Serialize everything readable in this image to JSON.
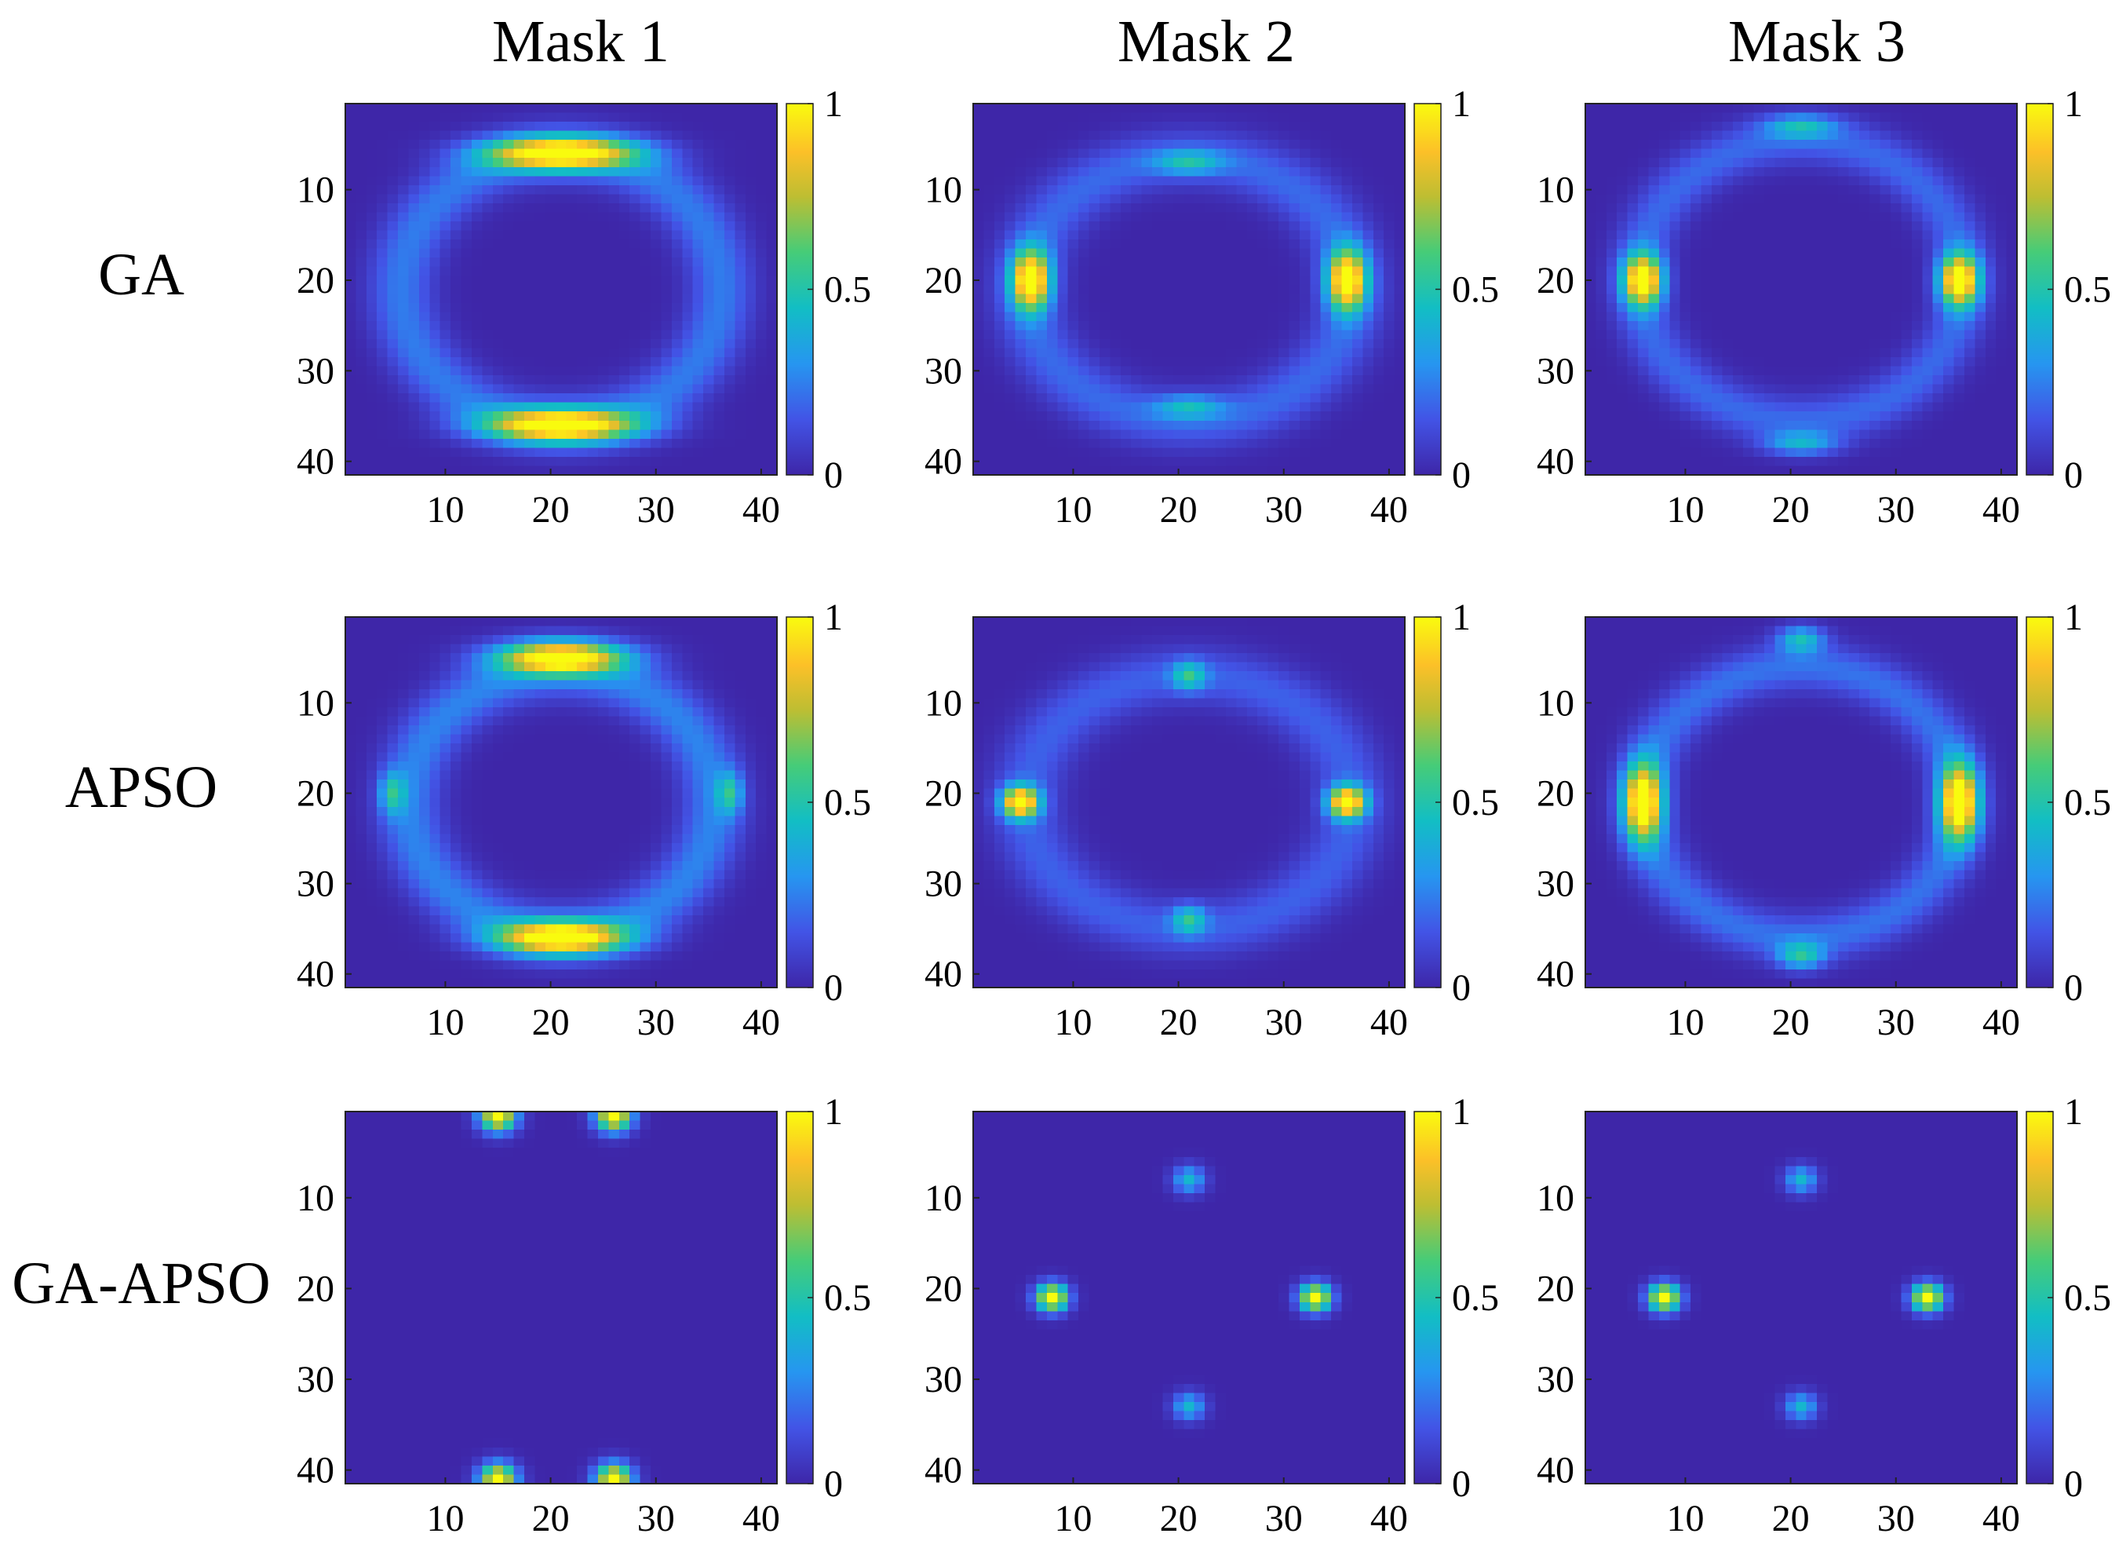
{
  "figure": {
    "column_titles": [
      "Mask 1",
      "Mask 2",
      "Mask 3"
    ],
    "row_titles": [
      "GA",
      "APSO",
      "GA-APSO"
    ]
  },
  "chart_data": [
    {
      "type": "heatmap",
      "title": "Mask 1",
      "method": "GA",
      "grid_size": 41,
      "xlim": [
        1,
        41
      ],
      "ylim": [
        1,
        41
      ],
      "y_reversed": true,
      "xticks": [
        10,
        20,
        30,
        40
      ],
      "yticks": [
        10,
        20,
        30,
        40
      ],
      "colorbar": {
        "min": 0,
        "max": 1,
        "ticks": [
          0,
          0.5,
          1
        ],
        "tick_labels": [
          "0",
          "0.5",
          "1"
        ]
      },
      "peaks": [
        {
          "x": 21,
          "y": 21,
          "sx": 15.2,
          "sy": 15.0,
          "type": "ring",
          "width": 3.0,
          "amplitude": 0.24
        },
        {
          "x": 21,
          "y": 6,
          "sx": 7.0,
          "sy": 1.8,
          "amplitude": 1.0
        },
        {
          "x": 21,
          "y": 36,
          "sx": 7.0,
          "sy": 1.8,
          "amplitude": 1.0
        }
      ]
    },
    {
      "type": "heatmap",
      "title": "Mask 2",
      "method": "GA",
      "grid_size": 41,
      "xlim": [
        1,
        41
      ],
      "ylim": [
        1,
        41
      ],
      "y_reversed": true,
      "xticks": [
        10,
        20,
        30,
        40
      ],
      "yticks": [
        10,
        20,
        30,
        40
      ],
      "colorbar": {
        "min": 0,
        "max": 1,
        "ticks": [
          0,
          0.5,
          1
        ],
        "tick_labels": [
          "0",
          "0.5",
          "1"
        ]
      },
      "peaks": [
        {
          "x": 21,
          "y": 21,
          "sx": 15.5,
          "sy": 14.5,
          "type": "ring",
          "width": 3.0,
          "amplitude": 0.2
        },
        {
          "x": 6,
          "y": 20,
          "sx": 1.8,
          "sy": 3.3,
          "amplitude": 1.0
        },
        {
          "x": 36,
          "y": 20,
          "sx": 1.8,
          "sy": 3.3,
          "amplitude": 1.0
        },
        {
          "x": 21,
          "y": 7,
          "sx": 3.2,
          "sy": 1.3,
          "amplitude": 0.32
        },
        {
          "x": 21,
          "y": 34,
          "sx": 3.2,
          "sy": 1.3,
          "amplitude": 0.32
        }
      ]
    },
    {
      "type": "heatmap",
      "title": "Mask 3",
      "method": "GA",
      "grid_size": 41,
      "xlim": [
        1,
        41
      ],
      "ylim": [
        1,
        41
      ],
      "y_reversed": true,
      "xticks": [
        10,
        20,
        30,
        40
      ],
      "yticks": [
        10,
        20,
        30,
        40
      ],
      "colorbar": {
        "min": 0,
        "max": 1,
        "ticks": [
          0,
          0.5,
          1
        ],
        "tick_labels": [
          "0",
          "0.5",
          "1"
        ]
      },
      "peaks": [
        {
          "x": 21,
          "y": 20,
          "sx": 15.5,
          "sy": 15.5,
          "type": "ring",
          "width": 2.6,
          "amplitude": 0.2
        },
        {
          "x": 6,
          "y": 20,
          "sx": 1.8,
          "sy": 2.8,
          "amplitude": 1.0
        },
        {
          "x": 36,
          "y": 20,
          "sx": 1.8,
          "sy": 2.8,
          "amplitude": 1.0
        },
        {
          "x": 21,
          "y": 3,
          "sx": 3.4,
          "sy": 1.3,
          "amplitude": 0.35
        },
        {
          "x": 21,
          "y": 38,
          "sx": 3.4,
          "sy": 1.3,
          "amplitude": 0.35
        }
      ]
    },
    {
      "type": "heatmap",
      "title": "Mask 1",
      "method": "APSO",
      "grid_size": 41,
      "xlim": [
        1,
        41
      ],
      "ylim": [
        1,
        41
      ],
      "y_reversed": true,
      "xticks": [
        10,
        20,
        30,
        40
      ],
      "yticks": [
        10,
        20,
        30,
        40
      ],
      "colorbar": {
        "min": 0,
        "max": 1,
        "ticks": [
          0,
          0.5,
          1
        ],
        "tick_labels": [
          "0",
          "0.5",
          "1"
        ]
      },
      "peaks": [
        {
          "x": 21,
          "y": 21,
          "sx": 14.5,
          "sy": 14.5,
          "type": "ring",
          "width": 3.0,
          "amplitude": 0.26
        },
        {
          "x": 21,
          "y": 5,
          "sx": 6.0,
          "sy": 1.8,
          "amplitude": 1.0
        },
        {
          "x": 21,
          "y": 36,
          "sx": 6.0,
          "sy": 1.8,
          "amplitude": 1.0
        },
        {
          "x": 5,
          "y": 20,
          "sx": 1.2,
          "sy": 2.3,
          "amplitude": 0.36
        },
        {
          "x": 37,
          "y": 20,
          "sx": 1.2,
          "sy": 2.3,
          "amplitude": 0.36
        }
      ]
    },
    {
      "type": "heatmap",
      "title": "Mask 2",
      "method": "APSO",
      "grid_size": 41,
      "xlim": [
        1,
        41
      ],
      "ylim": [
        1,
        41
      ],
      "y_reversed": true,
      "xticks": [
        10,
        20,
        30,
        40
      ],
      "yticks": [
        10,
        20,
        30,
        40
      ],
      "colorbar": {
        "min": 0,
        "max": 1,
        "ticks": [
          0,
          0.5,
          1
        ],
        "tick_labels": [
          "0",
          "0.5",
          "1"
        ]
      },
      "peaks": [
        {
          "x": 21,
          "y": 21,
          "sx": 15.5,
          "sy": 14.0,
          "type": "ring",
          "width": 3.0,
          "amplitude": 0.18
        },
        {
          "x": 5,
          "y": 21,
          "sx": 1.7,
          "sy": 1.7,
          "amplitude": 1.0
        },
        {
          "x": 36,
          "y": 21,
          "sx": 1.7,
          "sy": 1.7,
          "amplitude": 1.0
        },
        {
          "x": 21,
          "y": 7,
          "sx": 1.6,
          "sy": 1.6,
          "amplitude": 0.4
        },
        {
          "x": 21,
          "y": 34,
          "sx": 1.6,
          "sy": 1.6,
          "amplitude": 0.4
        }
      ]
    },
    {
      "type": "heatmap",
      "title": "Mask 3",
      "method": "APSO",
      "grid_size": 41,
      "xlim": [
        1,
        41
      ],
      "ylim": [
        1,
        41
      ],
      "y_reversed": true,
      "xticks": [
        10,
        20,
        30,
        40
      ],
      "yticks": [
        10,
        20,
        30,
        40
      ],
      "colorbar": {
        "min": 0,
        "max": 1,
        "ticks": [
          0,
          0.5,
          1
        ],
        "tick_labels": [
          "0",
          "0.5",
          "1"
        ]
      },
      "peaks": [
        {
          "x": 21,
          "y": 21,
          "sx": 15.0,
          "sy": 15.0,
          "type": "ring",
          "width": 2.6,
          "amplitude": 0.22
        },
        {
          "x": 6,
          "y": 21,
          "sx": 1.8,
          "sy": 4.2,
          "amplitude": 1.0
        },
        {
          "x": 36,
          "y": 21,
          "sx": 1.8,
          "sy": 4.2,
          "amplitude": 1.0
        },
        {
          "x": 21,
          "y": 3,
          "sx": 2.2,
          "sy": 1.5,
          "amplitude": 0.42
        },
        {
          "x": 21,
          "y": 38,
          "sx": 2.2,
          "sy": 1.5,
          "amplitude": 0.42
        }
      ]
    },
    {
      "type": "heatmap",
      "title": "Mask 1",
      "method": "GA-APSO",
      "grid_size": 41,
      "xlim": [
        1,
        41
      ],
      "ylim": [
        1,
        41
      ],
      "y_reversed": true,
      "xticks": [
        10,
        20,
        30,
        40
      ],
      "yticks": [
        10,
        20,
        30,
        40
      ],
      "colorbar": {
        "min": 0,
        "max": 1,
        "ticks": [
          0,
          0.5,
          1
        ],
        "tick_labels": [
          "0",
          "0.5",
          "1"
        ]
      },
      "peaks": [
        {
          "x": 15,
          "y": 1,
          "sx": 1.7,
          "sy": 1.7,
          "amplitude": 1.0
        },
        {
          "x": 26,
          "y": 1,
          "sx": 1.7,
          "sy": 1.7,
          "amplitude": 1.0
        },
        {
          "x": 15,
          "y": 41,
          "sx": 1.7,
          "sy": 1.7,
          "amplitude": 1.0
        },
        {
          "x": 26,
          "y": 41,
          "sx": 1.7,
          "sy": 1.7,
          "amplitude": 1.0
        }
      ]
    },
    {
      "type": "heatmap",
      "title": "Mask 2",
      "method": "GA-APSO",
      "grid_size": 41,
      "xlim": [
        1,
        41
      ],
      "ylim": [
        1,
        41
      ],
      "y_reversed": true,
      "xticks": [
        10,
        20,
        30,
        40
      ],
      "yticks": [
        10,
        20,
        30,
        40
      ],
      "colorbar": {
        "min": 0,
        "max": 1,
        "ticks": [
          0,
          0.5,
          1
        ],
        "tick_labels": [
          "0",
          "0.5",
          "1"
        ]
      },
      "peaks": [
        {
          "x": 8,
          "y": 21,
          "sx": 1.5,
          "sy": 1.5,
          "amplitude": 1.0
        },
        {
          "x": 33,
          "y": 21,
          "sx": 1.5,
          "sy": 1.5,
          "amplitude": 1.0
        },
        {
          "x": 21,
          "y": 8,
          "sx": 1.5,
          "sy": 1.5,
          "amplitude": 0.42
        },
        {
          "x": 21,
          "y": 33,
          "sx": 1.5,
          "sy": 1.5,
          "amplitude": 0.42
        }
      ]
    },
    {
      "type": "heatmap",
      "title": "Mask 3",
      "method": "GA-APSO",
      "grid_size": 41,
      "xlim": [
        1,
        41
      ],
      "ylim": [
        1,
        41
      ],
      "y_reversed": true,
      "xticks": [
        10,
        20,
        30,
        40
      ],
      "yticks": [
        10,
        20,
        30,
        40
      ],
      "colorbar": {
        "min": 0,
        "max": 1,
        "ticks": [
          0,
          0.5,
          1
        ],
        "tick_labels": [
          "0",
          "0.5",
          "1"
        ]
      },
      "peaks": [
        {
          "x": 8,
          "y": 21,
          "sx": 1.5,
          "sy": 1.5,
          "amplitude": 1.0
        },
        {
          "x": 33,
          "y": 21,
          "sx": 1.5,
          "sy": 1.5,
          "amplitude": 1.0
        },
        {
          "x": 21,
          "y": 8,
          "sx": 1.5,
          "sy": 1.5,
          "amplitude": 0.42
        },
        {
          "x": 21,
          "y": 33,
          "sx": 1.5,
          "sy": 1.5,
          "amplitude": 0.42
        }
      ]
    }
  ]
}
